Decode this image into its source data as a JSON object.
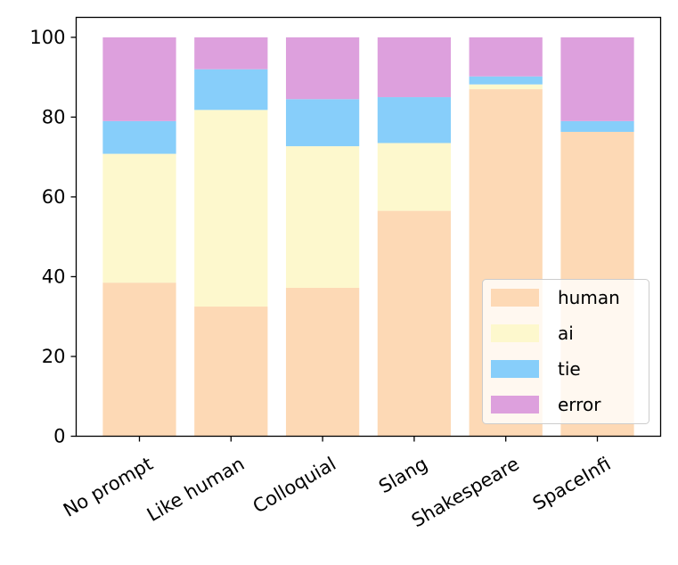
{
  "chart_data": {
    "type": "bar",
    "stacked": true,
    "title": "",
    "xlabel": "",
    "ylabel": "",
    "ylim": [
      0,
      105
    ],
    "yticks": [
      0,
      20,
      40,
      60,
      80,
      100
    ],
    "categories": [
      "No prompt",
      "Like human",
      "Colloquial",
      "Slang",
      "Shakespeare",
      "SpaceInfi"
    ],
    "series": [
      {
        "name": "human",
        "color": "#fdd9b5",
        "values": [
          38.5,
          32.5,
          37.2,
          56.5,
          87.0,
          76.3
        ]
      },
      {
        "name": "ai",
        "color": "#fdf8cd",
        "values": [
          32.3,
          49.3,
          35.5,
          17.0,
          1.2,
          0.0
        ]
      },
      {
        "name": "tie",
        "color": "#87cefa",
        "values": [
          8.2,
          10.2,
          11.8,
          11.5,
          2.0,
          2.7
        ]
      },
      {
        "name": "error",
        "color": "#dda0dd",
        "values": [
          21.0,
          8.0,
          15.5,
          15.0,
          9.8,
          21.0
        ]
      }
    ],
    "legend": {
      "position": "bottom-right",
      "entries": [
        "human",
        "ai",
        "tie",
        "error"
      ]
    },
    "grid": false
  }
}
